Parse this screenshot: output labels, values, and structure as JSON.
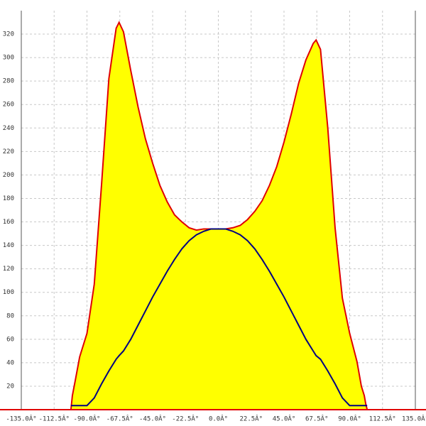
{
  "chart_data": {
    "type": "area-line",
    "x": [
      -101,
      -100,
      -98,
      -95,
      -90,
      -85,
      -80,
      -75,
      -70,
      -68,
      -65,
      -60,
      -55,
      -50,
      -45,
      -40,
      -35,
      -30,
      -25,
      -20,
      -15,
      -10,
      -5,
      0,
      5,
      10,
      15,
      20,
      25,
      30,
      35,
      40,
      45,
      50,
      55,
      60,
      65,
      67,
      70,
      75,
      80,
      85,
      90,
      95,
      98,
      100,
      101,
      102
    ],
    "series": [
      {
        "color": "#e00000",
        "fill": "#ffff00",
        "values": [
          0,
          12,
          25,
          45,
          65,
          107,
          192,
          282,
          325,
          330,
          322,
          289,
          258,
          231,
          210,
          191,
          177,
          166,
          160,
          155,
          153,
          154,
          154,
          154,
          154,
          155,
          157,
          162,
          169,
          178,
          191,
          207,
          228,
          252,
          278,
          298,
          312,
          315,
          307,
          240,
          155,
          95,
          65,
          41,
          20,
          12,
          5,
          0
        ]
      },
      {
        "color": "#000080",
        "values": [
          3.5,
          3.5,
          3.5,
          3.5,
          3.5,
          10,
          22,
          33,
          43,
          46,
          50,
          60,
          72,
          84,
          96,
          107,
          118,
          128,
          137,
          144,
          149,
          152,
          154,
          154,
          154,
          152,
          149,
          144,
          137,
          128,
          118,
          107,
          96,
          84,
          72,
          60,
          50,
          46,
          43,
          33,
          22,
          10,
          3.5,
          3.5,
          3.5,
          3.5,
          3.5,
          3.5
        ]
      }
    ],
    "xlim": [
      -135,
      135
    ],
    "xticks": [
      {
        "value": -135,
        "label": "-135.0Â°"
      },
      {
        "value": -112.5,
        "label": "-112.5Â°"
      },
      {
        "value": -90,
        "label": "-90.0Â°"
      },
      {
        "value": -67.5,
        "label": "-67.5Â°"
      },
      {
        "value": -45,
        "label": "-45.0Â°"
      },
      {
        "value": -22.5,
        "label": "-22.5Â°"
      },
      {
        "value": 0,
        "label": "0.0Â°"
      },
      {
        "value": 22.5,
        "label": "22.5Â°"
      },
      {
        "value": 45,
        "label": "45.0Â°"
      },
      {
        "value": 67.5,
        "label": "67.5Â°"
      },
      {
        "value": 90,
        "label": "90.0Â°"
      },
      {
        "value": 112.5,
        "label": "112.5Â°"
      },
      {
        "value": 135,
        "label": "135.0Â°"
      }
    ],
    "ylim": [
      0,
      340
    ],
    "yticks": [
      20,
      40,
      60,
      80,
      100,
      120,
      140,
      160,
      180,
      200,
      220,
      240,
      260,
      280,
      300,
      320
    ],
    "grid": true
  }
}
